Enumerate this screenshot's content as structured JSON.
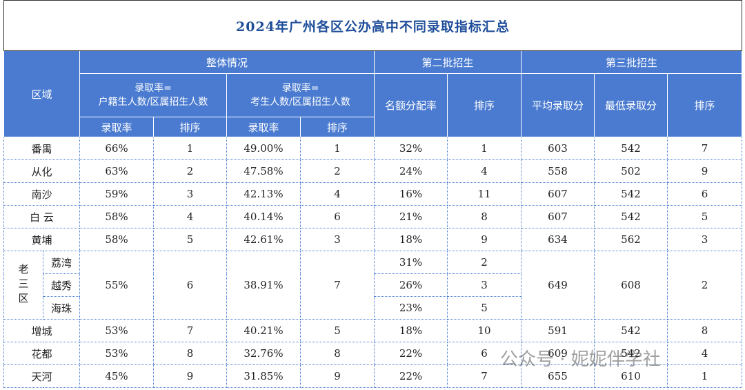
{
  "title": "2024年广州各区公办高中不同录取指标汇总",
  "header": {
    "region": "区域",
    "overall": "整体情况",
    "second": "第二批招生",
    "third": "第三批招生",
    "formula_a": [
      "录取率=",
      "户籍生人数/区属招生人数"
    ],
    "formula_b": [
      "录取率=",
      "考生人数/区属招生人数"
    ],
    "rate": "录取率",
    "rank": "排序",
    "quota_rate": "名额分配率",
    "avg_score": "平均录取分",
    "min_score": "最低录取分"
  },
  "rows": [
    {
      "region": "番禺",
      "enroll_rate": "66%",
      "enroll_rank": 1,
      "exam_rate": "49.00%",
      "exam_rank": 1,
      "quota_rate": "32%",
      "quota_rank": 1,
      "avg_score": 603,
      "min_score": 542,
      "third_rank": 7
    },
    {
      "region": "从化",
      "enroll_rate": "63%",
      "enroll_rank": 2,
      "exam_rate": "47.58%",
      "exam_rank": 2,
      "quota_rate": "24%",
      "quota_rank": 4,
      "avg_score": 558,
      "min_score": 502,
      "third_rank": 9
    },
    {
      "region": "南沙",
      "enroll_rate": "59%",
      "enroll_rank": 3,
      "exam_rate": "42.13%",
      "exam_rank": 4,
      "quota_rate": "16%",
      "quota_rank": 11,
      "avg_score": 607,
      "min_score": 542,
      "third_rank": 6
    },
    {
      "region": "白 云",
      "enroll_rate": "58%",
      "enroll_rank": 4,
      "exam_rate": "40.14%",
      "exam_rank": 6,
      "quota_rate": "21%",
      "quota_rank": 8,
      "avg_score": 607,
      "min_score": 542,
      "third_rank": 5
    },
    {
      "region": "黄埔",
      "enroll_rate": "58%",
      "enroll_rank": 5,
      "exam_rate": "42.61%",
      "exam_rank": 3,
      "quota_rate": "18%",
      "quota_rank": 9,
      "avg_score": 634,
      "min_score": 562,
      "third_rank": 3
    },
    {
      "group": "老三区",
      "districts": [
        {
          "name": "荔湾",
          "quota_rate": "31%",
          "quota_rank": 2
        },
        {
          "name": "越秀",
          "quota_rate": "26%",
          "quota_rank": 3
        },
        {
          "name": "海珠",
          "quota_rate": "23%",
          "quota_rank": 5
        }
      ],
      "enroll_rate": "55%",
      "enroll_rank": 6,
      "exam_rate": "38.91%",
      "exam_rank": 7,
      "avg_score": 649,
      "min_score": 608,
      "third_rank": 2
    },
    {
      "region": "增城",
      "enroll_rate": "53%",
      "enroll_rank": 7,
      "exam_rate": "40.21%",
      "exam_rank": 5,
      "quota_rate": "18%",
      "quota_rank": 10,
      "avg_score": 591,
      "min_score": 542,
      "third_rank": 8
    },
    {
      "region": "花都",
      "enroll_rate": "53%",
      "enroll_rank": 8,
      "exam_rate": "32.76%",
      "exam_rank": 8,
      "quota_rate": "22%",
      "quota_rank": 6,
      "avg_score": 609,
      "min_score": 542,
      "third_rank": 4
    },
    {
      "region": "天河",
      "enroll_rate": "45%",
      "enroll_rank": 9,
      "exam_rate": "31.85%",
      "exam_rank": 9,
      "quota_rate": "22%",
      "quota_rank": 7,
      "avg_score": 655,
      "min_score": 610,
      "third_rank": 1
    }
  ],
  "watermark": "公众号 · 妮妮伴学社"
}
